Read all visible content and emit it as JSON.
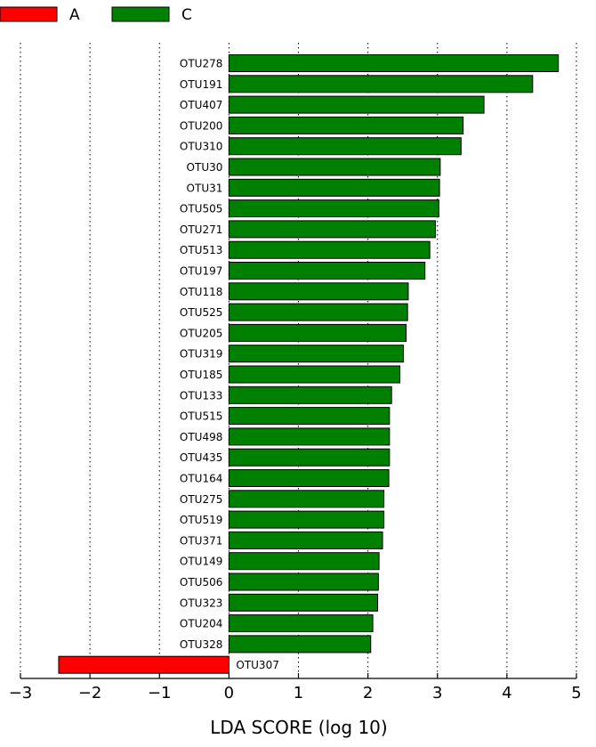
{
  "chart_data": {
    "type": "bar",
    "orientation": "horizontal",
    "xlabel": "LDA SCORE (log 10)",
    "xlim": [
      -3,
      5
    ],
    "xticks": [
      -3,
      -2,
      -1,
      0,
      1,
      2,
      3,
      4,
      5
    ],
    "grid": "vertical dotted",
    "legend_position": "top-left",
    "series": [
      {
        "name": "A",
        "color": "#ff0000"
      },
      {
        "name": "C",
        "color": "#008000"
      }
    ],
    "categories": [
      "OTU278",
      "OTU191",
      "OTU407",
      "OTU200",
      "OTU310",
      "OTU30",
      "OTU31",
      "OTU505",
      "OTU271",
      "OTU513",
      "OTU197",
      "OTU118",
      "OTU525",
      "OTU205",
      "OTU319",
      "OTU185",
      "OTU133",
      "OTU515",
      "OTU498",
      "OTU435",
      "OTU164",
      "OTU275",
      "OTU519",
      "OTU371",
      "OTU149",
      "OTU506",
      "OTU323",
      "OTU204",
      "OTU328",
      "OTU307"
    ],
    "values": [
      4.74,
      4.37,
      3.67,
      3.37,
      3.34,
      3.04,
      3.03,
      3.02,
      2.97,
      2.89,
      2.82,
      2.58,
      2.57,
      2.55,
      2.51,
      2.46,
      2.34,
      2.31,
      2.31,
      2.31,
      2.3,
      2.23,
      2.23,
      2.21,
      2.16,
      2.15,
      2.14,
      2.07,
      2.04,
      -2.45
    ],
    "groups": [
      "C",
      "C",
      "C",
      "C",
      "C",
      "C",
      "C",
      "C",
      "C",
      "C",
      "C",
      "C",
      "C",
      "C",
      "C",
      "C",
      "C",
      "C",
      "C",
      "C",
      "C",
      "C",
      "C",
      "C",
      "C",
      "C",
      "C",
      "C",
      "C",
      "A"
    ]
  }
}
